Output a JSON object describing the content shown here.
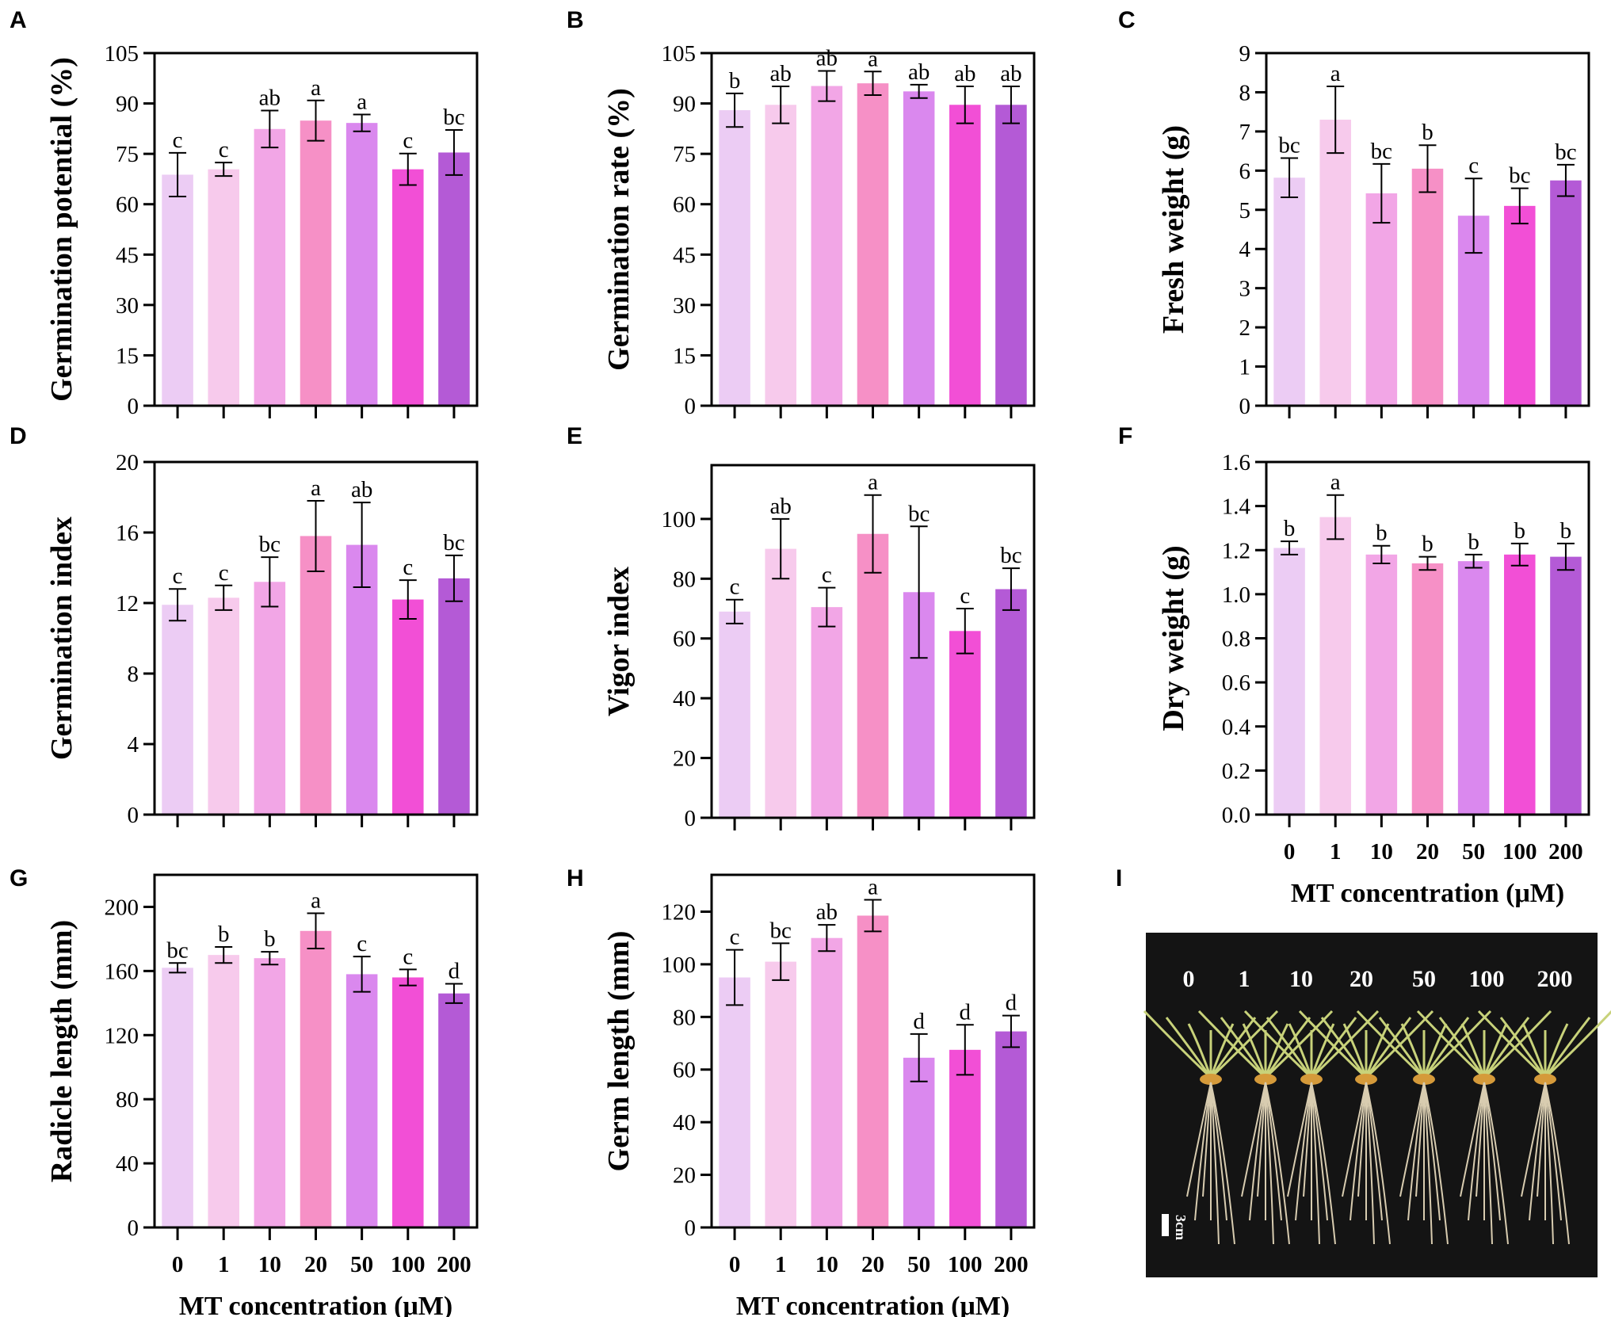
{
  "colors": [
    "#ecccf4",
    "#f7caec",
    "#f2a6e6",
    "#f690c6",
    "#da88ee",
    "#f24fd6",
    "#b45ad6"
  ],
  "chart_data": [
    {
      "id": "A",
      "panel": "A",
      "type": "bar",
      "categories": [
        "0",
        "1",
        "10",
        "20",
        "50",
        "100",
        "200"
      ],
      "values": [
        68.8,
        70.4,
        82.4,
        84.9,
        84.2,
        70.4,
        75.4
      ],
      "errors": [
        6.5,
        2.0,
        5.5,
        6.0,
        2.5,
        4.7,
        6.7
      ],
      "letters": [
        "c",
        "c",
        "ab",
        "a",
        "a",
        "c",
        "bc"
      ],
      "ylabel": "Germination potential (%)",
      "xlabel": "",
      "ylim": [
        0,
        105
      ],
      "yticks": [
        "0",
        "15",
        "30",
        "45",
        "60",
        "75",
        "90",
        "105"
      ],
      "show_categories": false
    },
    {
      "id": "B",
      "panel": "B",
      "type": "bar",
      "categories": [
        "0",
        "1",
        "10",
        "20",
        "50",
        "100",
        "200"
      ],
      "values": [
        88.0,
        89.6,
        95.2,
        96.0,
        93.6,
        89.6,
        89.6
      ],
      "errors": [
        5.0,
        5.5,
        4.5,
        3.5,
        2.0,
        5.5,
        5.5
      ],
      "letters": [
        "b",
        "ab",
        "ab",
        "a",
        "ab",
        "ab",
        "ab"
      ],
      "ylabel": "Germination rate (%)",
      "xlabel": "",
      "ylim": [
        0,
        105
      ],
      "yticks": [
        "0",
        "15",
        "30",
        "45",
        "60",
        "75",
        "90",
        "105"
      ],
      "show_categories": false
    },
    {
      "id": "C",
      "panel": "C",
      "type": "bar",
      "categories": [
        "0",
        "1",
        "10",
        "20",
        "50",
        "100",
        "200"
      ],
      "values": [
        5.82,
        7.3,
        5.42,
        6.05,
        4.85,
        5.1,
        5.75
      ],
      "errors": [
        0.5,
        0.85,
        0.75,
        0.6,
        0.95,
        0.45,
        0.4
      ],
      "letters": [
        "bc",
        "a",
        "bc",
        "b",
        "c",
        "bc",
        "bc"
      ],
      "ylabel": "Fresh weight (g)",
      "xlabel": "",
      "ylim": [
        0,
        9
      ],
      "yticks": [
        "0",
        "1",
        "2",
        "3",
        "4",
        "5",
        "6",
        "7",
        "8",
        "9"
      ],
      "show_categories": false
    },
    {
      "id": "D",
      "panel": "D",
      "type": "bar",
      "categories": [
        "0",
        "1",
        "10",
        "20",
        "50",
        "100",
        "200"
      ],
      "values": [
        11.9,
        12.3,
        13.2,
        15.8,
        15.3,
        12.2,
        13.4
      ],
      "errors": [
        0.9,
        0.7,
        1.4,
        2.0,
        2.4,
        1.1,
        1.3
      ],
      "letters": [
        "c",
        "c",
        "bc",
        "a",
        "ab",
        "c",
        "bc"
      ],
      "ylabel": "Germination index",
      "xlabel": "",
      "ylim": [
        0,
        20
      ],
      "yticks": [
        "0",
        "4",
        "8",
        "12",
        "16",
        "20"
      ],
      "show_categories": false
    },
    {
      "id": "E",
      "panel": "E",
      "type": "bar",
      "categories": [
        "0",
        "1",
        "10",
        "20",
        "50",
        "100",
        "200"
      ],
      "values": [
        69.0,
        90.0,
        70.5,
        95.0,
        75.5,
        62.5,
        76.5
      ],
      "errors": [
        4.0,
        10.0,
        6.5,
        13.0,
        22.0,
        7.5,
        7.0
      ],
      "letters": [
        "c",
        "ab",
        "c",
        "a",
        "bc",
        "c",
        "bc"
      ],
      "ylabel": "Vigor index",
      "xlabel": "",
      "ylim": [
        0,
        118
      ],
      "yticks": [
        "0",
        "20",
        "40",
        "60",
        "80",
        "100"
      ],
      "show_categories": false
    },
    {
      "id": "F",
      "panel": "F",
      "type": "bar",
      "categories": [
        "0",
        "1",
        "10",
        "20",
        "50",
        "100",
        "200"
      ],
      "values": [
        1.21,
        1.35,
        1.18,
        1.14,
        1.15,
        1.18,
        1.17
      ],
      "errors": [
        0.03,
        0.1,
        0.04,
        0.03,
        0.03,
        0.05,
        0.06
      ],
      "letters": [
        "b",
        "a",
        "b",
        "b",
        "b",
        "b",
        "b"
      ],
      "ylabel": "Dry weight (g)",
      "xlabel": "MT concentration (μM)",
      "ylim": [
        0,
        1.6
      ],
      "yticks": [
        "0.0",
        "0.2",
        "0.4",
        "0.6",
        "0.8",
        "1.0",
        "1.2",
        "1.4",
        "1.6"
      ],
      "show_categories": true
    },
    {
      "id": "G",
      "panel": "G",
      "type": "bar",
      "categories": [
        "0",
        "1",
        "10",
        "20",
        "50",
        "100",
        "200"
      ],
      "values": [
        162,
        170,
        168,
        185,
        158,
        156,
        146
      ],
      "errors": [
        3,
        5,
        4,
        11,
        11,
        5,
        6
      ],
      "letters": [
        "bc",
        "b",
        "b",
        "a",
        "c",
        "c",
        "d"
      ],
      "ylabel": "Radicle length (mm)",
      "xlabel": "MT concentration (μM)",
      "ylim": [
        0,
        220
      ],
      "yticks": [
        "0",
        "40",
        "80",
        "120",
        "160",
        "200"
      ],
      "show_categories": true
    },
    {
      "id": "H",
      "panel": "H",
      "type": "bar",
      "categories": [
        "0",
        "1",
        "10",
        "20",
        "50",
        "100",
        "200"
      ],
      "values": [
        95,
        101,
        110,
        118.5,
        64.5,
        67.5,
        74.5
      ],
      "errors": [
        10.5,
        7.0,
        5.0,
        6.0,
        9.0,
        9.5,
        6.0
      ],
      "letters": [
        "c",
        "bc",
        "ab",
        "a",
        "d",
        "d",
        "d"
      ],
      "ylabel": "Germ length (mm)",
      "xlabel": "MT concentration (μM)",
      "ylim": [
        0,
        134
      ],
      "yticks": [
        "0",
        "20",
        "40",
        "60",
        "80",
        "100",
        "120"
      ],
      "show_categories": true
    }
  ],
  "photo": {
    "panel": "I",
    "labels": [
      "0",
      "1",
      "10",
      "20",
      "50",
      "100",
      "200"
    ],
    "scale_bar": "3cm"
  }
}
